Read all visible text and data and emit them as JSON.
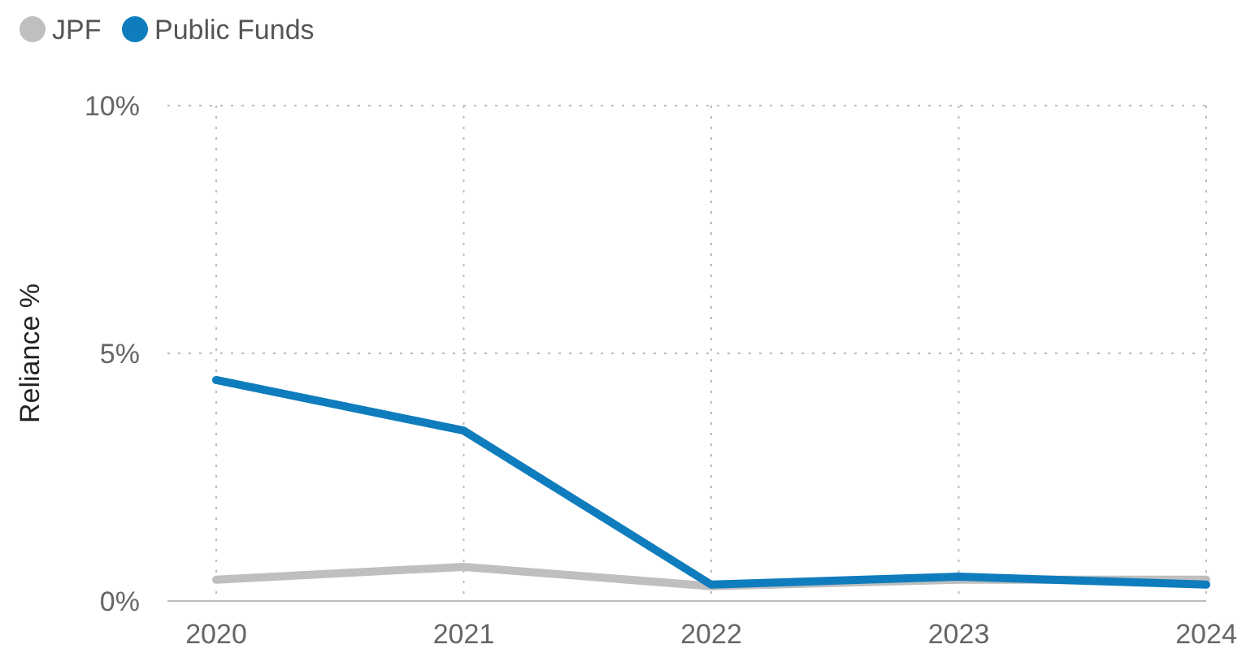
{
  "chart_data": {
    "type": "line",
    "ylabel": "Reliance %",
    "categories": [
      "2020",
      "2021",
      "2022",
      "2023",
      "2024"
    ],
    "series": [
      {
        "name": "JPF",
        "color": "#bfbfbf",
        "values": [
          0.43,
          0.69,
          0.3,
          0.43,
          0.43
        ]
      },
      {
        "name": "Public Funds",
        "color": "#0f7dbd",
        "values": [
          4.46,
          3.44,
          0.33,
          0.49,
          0.33
        ]
      }
    ],
    "ylim": [
      0,
      10
    ],
    "yticks": [
      {
        "value": 0,
        "label": "0%"
      },
      {
        "value": 5,
        "label": "5%"
      },
      {
        "value": 10,
        "label": "10%"
      }
    ],
    "grid": true,
    "legend": "top left",
    "marker": "none",
    "line_style": "solid"
  }
}
